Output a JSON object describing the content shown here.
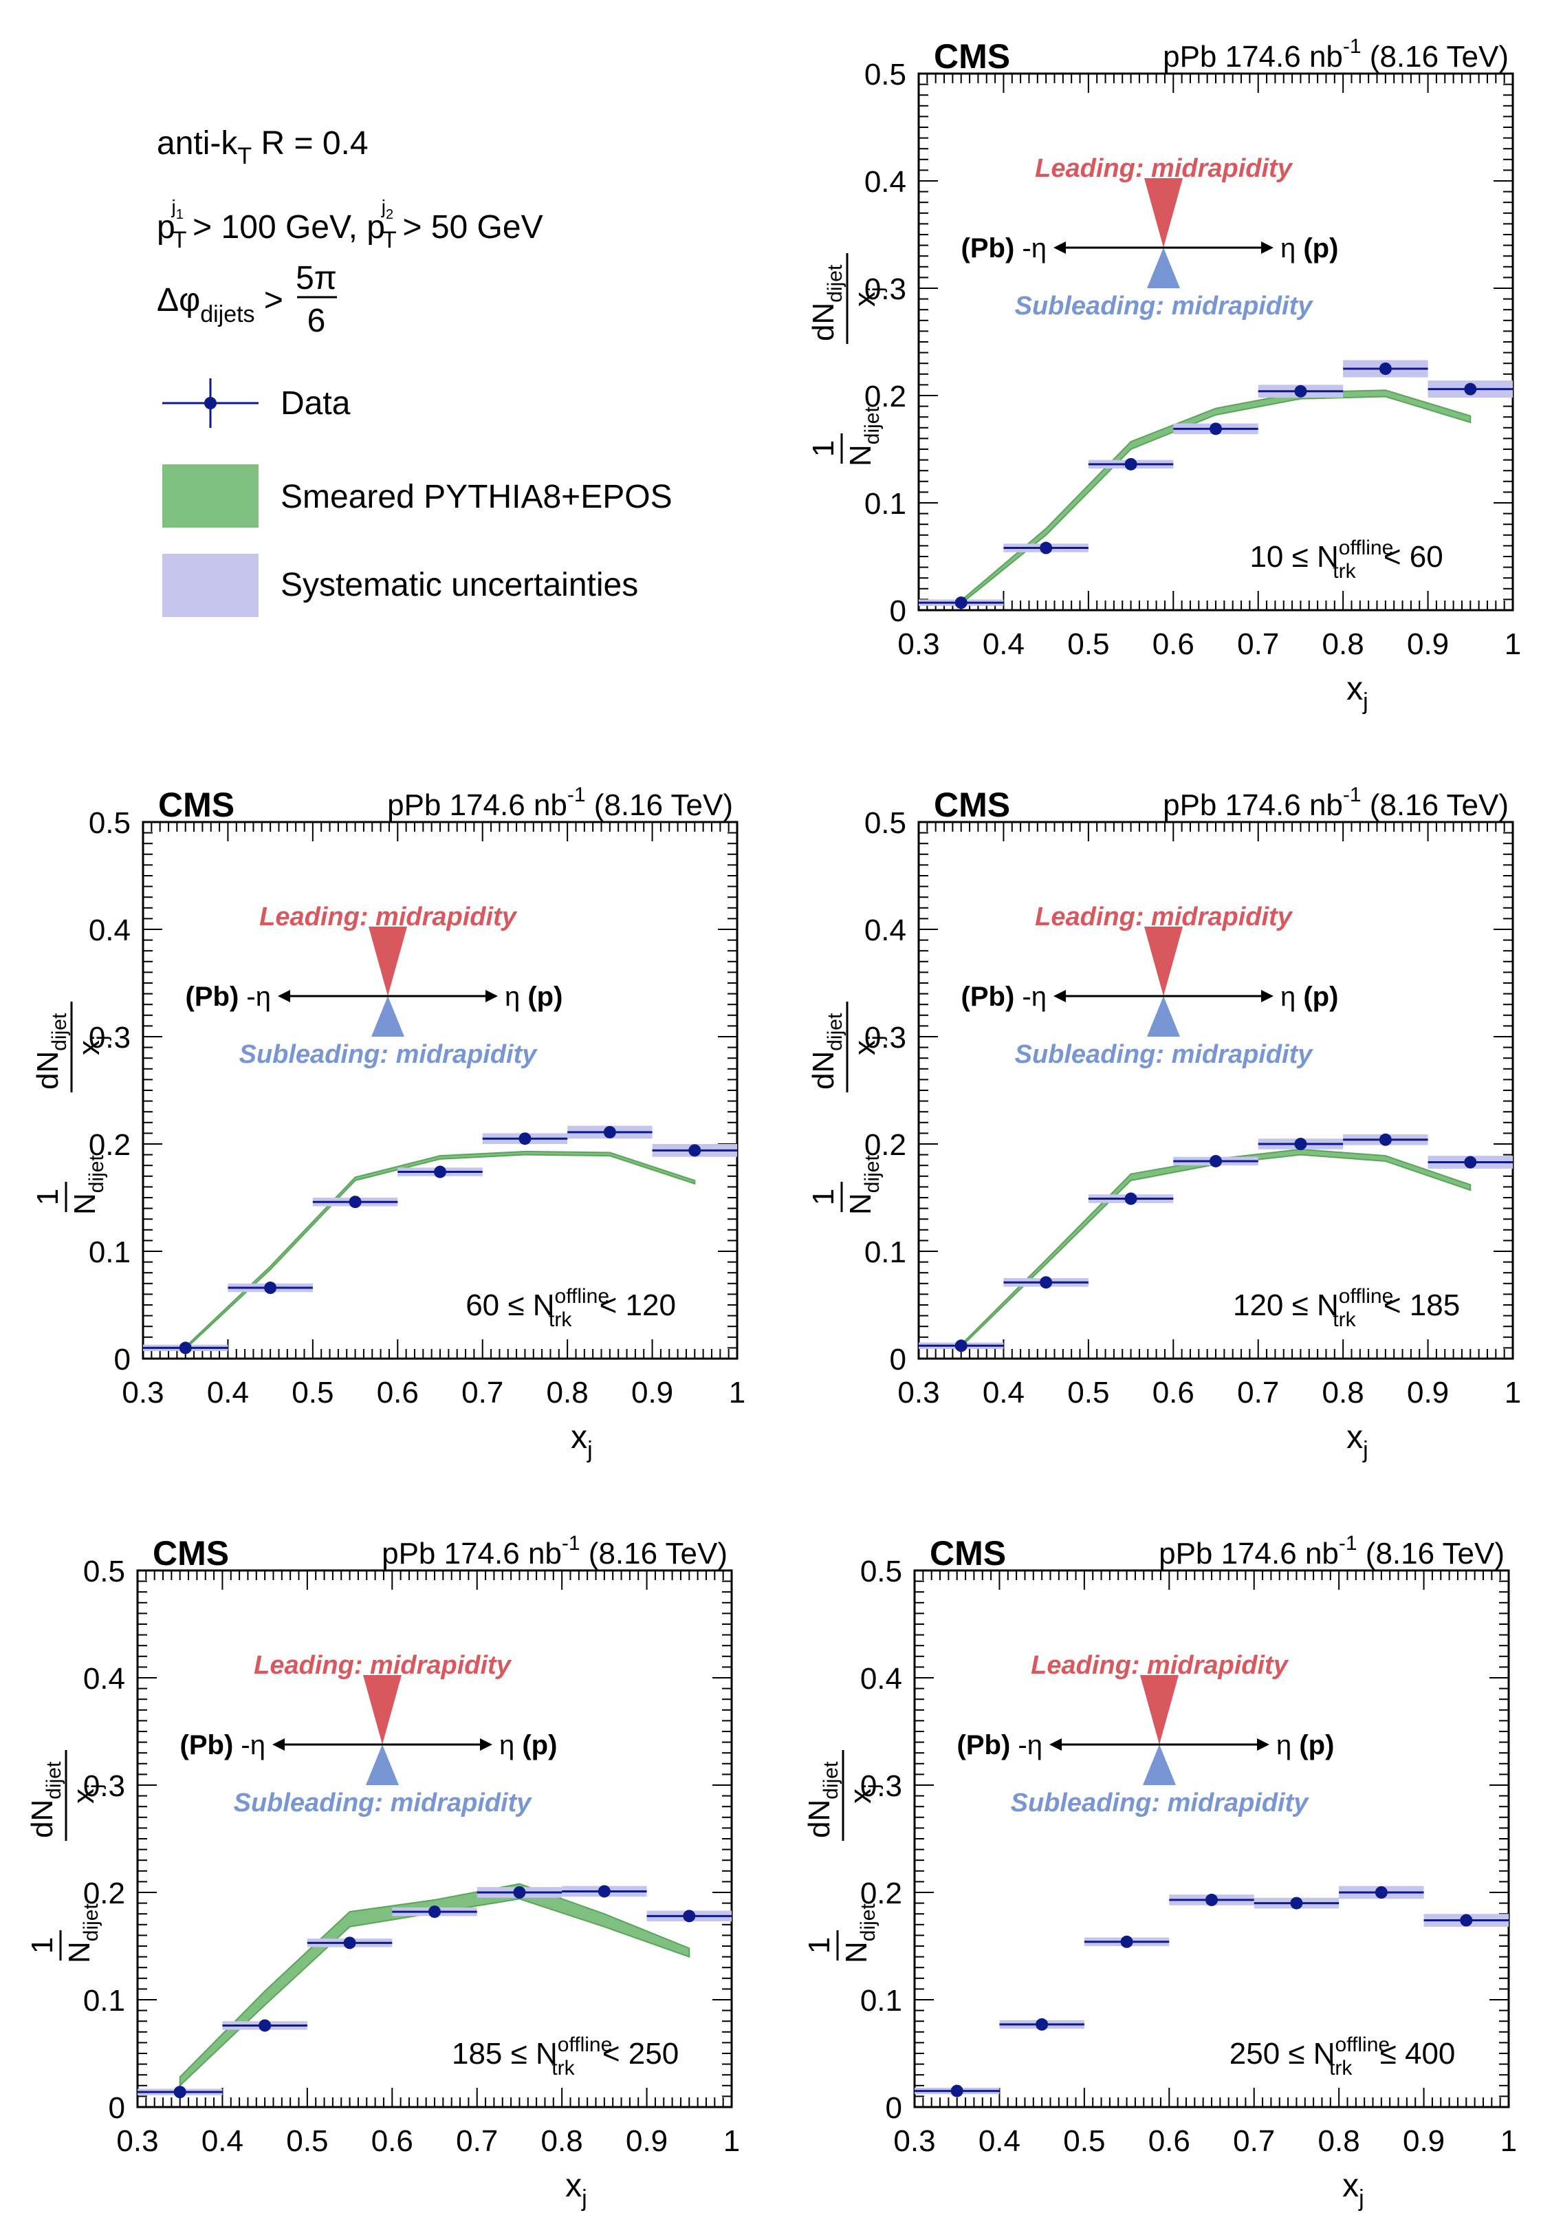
{
  "legend": {
    "algo_main": "anti-k",
    "algo_sub": "T",
    "algo_rest": " R = 0.4",
    "pt_p": "p",
    "pt_t": "T",
    "pt_j1": "j",
    "pt_j1sub": "1",
    "pt_gt1": " > 100 GeV, ",
    "pt_p2": "p",
    "pt_t2": "T",
    "pt_j2": "j",
    "pt_j2sub": "2",
    "pt_gt2": " > 50 GeV",
    "dphi_main": "Δφ",
    "dphi_sub": "dijets",
    "dphi_gt": " >",
    "frac_num": "5π",
    "frac_den": "6",
    "entry_data": "Data",
    "entry_model": "Smeared PYTHIA8+EPOS",
    "entry_syst": "Systematic uncertainties"
  },
  "labels": {
    "cms": "CMS",
    "lumi_main": "pPb 174.6 nb",
    "lumi_sup": "-1",
    "lumi_energy": " (8.16 TeV)",
    "leading": "Leading: midrapidity",
    "subleading": "Subleading: midrapidity",
    "pb": "(Pb)",
    "minus_eta": " -η",
    "eta": "η",
    "p": " (p)",
    "xlabel_main": "x",
    "xlabel_sub": "j",
    "ylabel_one": "1",
    "ylabel_den": "N",
    "ylabel_den_sub": "dijet",
    "ylabel_num": "dN",
    "ylabel_num_sub": "dijet",
    "ylabel_xj": "x",
    "ylabel_xj_sub": "j",
    "ntrk_N": "N",
    "ntrk_sup": "offline",
    "ntrk_sub": "trk"
  },
  "colors": {
    "data": "#0d1a8a",
    "model_fill": "#7fbf7f",
    "model_line": "#5aa55a",
    "syst": "#c4c4ec",
    "leading": "#d9585e",
    "subleading": "#7895d4"
  },
  "chart_data": [
    {
      "type": "scatter",
      "panel": "top-right",
      "xlim": [
        0.3,
        1.0
      ],
      "ylim": [
        0,
        0.5
      ],
      "ticks_x": [
        "0.3",
        "0.4",
        "0.5",
        "0.6",
        "0.7",
        "0.8",
        "0.9",
        "1"
      ],
      "ticks_y": [
        "0",
        "0.1",
        "0.2",
        "0.3",
        "0.4",
        "0.5"
      ],
      "ntrk_lo": "10 ≤ ",
      "ntrk_hi": " < 60",
      "x": [
        0.35,
        0.45,
        0.55,
        0.65,
        0.75,
        0.85,
        0.95
      ],
      "xerr": 0.05,
      "data": [
        0.007,
        0.058,
        0.136,
        0.169,
        0.204,
        0.225,
        0.206
      ],
      "syst": [
        0.003,
        0.004,
        0.004,
        0.005,
        0.006,
        0.008,
        0.008
      ],
      "model_x": [
        0.35,
        0.45,
        0.55,
        0.65,
        0.75,
        0.85,
        0.95
      ],
      "model_lo": [
        0.006,
        0.07,
        0.15,
        0.182,
        0.197,
        0.199,
        0.175
      ],
      "model_hi": [
        0.009,
        0.076,
        0.157,
        0.188,
        0.203,
        0.205,
        0.181
      ]
    },
    {
      "type": "scatter",
      "panel": "middle-left",
      "xlim": [
        0.3,
        1.0
      ],
      "ylim": [
        0,
        0.5
      ],
      "ticks_x": [
        "0.3",
        "0.4",
        "0.5",
        "0.6",
        "0.7",
        "0.8",
        "0.9",
        "1"
      ],
      "ticks_y": [
        "0",
        "0.1",
        "0.2",
        "0.3",
        "0.4",
        "0.5"
      ],
      "ntrk_lo": "60 ≤ ",
      "ntrk_hi": " < 120",
      "x": [
        0.35,
        0.45,
        0.55,
        0.65,
        0.75,
        0.85,
        0.95
      ],
      "xerr": 0.05,
      "data": [
        0.01,
        0.066,
        0.146,
        0.174,
        0.205,
        0.211,
        0.194
      ],
      "syst": [
        0.003,
        0.004,
        0.004,
        0.004,
        0.005,
        0.006,
        0.006
      ],
      "model_x": [
        0.35,
        0.45,
        0.55,
        0.65,
        0.75,
        0.85,
        0.95
      ],
      "model_lo": [
        0.009,
        0.083,
        0.166,
        0.186,
        0.19,
        0.189,
        0.163
      ],
      "model_hi": [
        0.011,
        0.086,
        0.169,
        0.189,
        0.193,
        0.192,
        0.166
      ]
    },
    {
      "type": "scatter",
      "panel": "middle-right",
      "xlim": [
        0.3,
        1.0
      ],
      "ylim": [
        0,
        0.5
      ],
      "ticks_x": [
        "0.3",
        "0.4",
        "0.5",
        "0.6",
        "0.7",
        "0.8",
        "0.9",
        "1"
      ],
      "ticks_y": [
        "0",
        "0.1",
        "0.2",
        "0.3",
        "0.4",
        "0.5"
      ],
      "ntrk_lo": "120 ≤ ",
      "ntrk_hi": " < 185",
      "x": [
        0.35,
        0.45,
        0.55,
        0.65,
        0.75,
        0.85,
        0.95
      ],
      "xerr": 0.05,
      "data": [
        0.012,
        0.071,
        0.149,
        0.184,
        0.2,
        0.204,
        0.183
      ],
      "syst": [
        0.003,
        0.004,
        0.004,
        0.004,
        0.005,
        0.005,
        0.006
      ],
      "model_x": [
        0.35,
        0.45,
        0.55,
        0.65,
        0.75,
        0.85,
        0.95
      ],
      "model_lo": [
        0.011,
        0.088,
        0.166,
        0.181,
        0.19,
        0.184,
        0.157
      ],
      "model_hi": [
        0.013,
        0.092,
        0.172,
        0.186,
        0.195,
        0.189,
        0.162
      ]
    },
    {
      "type": "scatter",
      "panel": "bottom-left",
      "xlim": [
        0.3,
        1.0
      ],
      "ylim": [
        0,
        0.5
      ],
      "ticks_x": [
        "0.3",
        "0.4",
        "0.5",
        "0.6",
        "0.7",
        "0.8",
        "0.9",
        "1"
      ],
      "ticks_y": [
        "0",
        "0.1",
        "0.2",
        "0.3",
        "0.4",
        "0.5"
      ],
      "ntrk_lo": "185 ≤ ",
      "ntrk_hi": " < 250",
      "x": [
        0.35,
        0.45,
        0.55,
        0.65,
        0.75,
        0.85,
        0.95
      ],
      "xerr": 0.05,
      "data": [
        0.014,
        0.076,
        0.153,
        0.182,
        0.2,
        0.201,
        0.178
      ],
      "syst": [
        0.003,
        0.004,
        0.004,
        0.004,
        0.005,
        0.005,
        0.005
      ],
      "model_x": [
        0.35,
        0.45,
        0.55,
        0.65,
        0.75,
        0.85,
        0.95
      ],
      "model_lo": [
        0.02,
        0.095,
        0.168,
        0.181,
        0.194,
        0.168,
        0.14
      ],
      "model_hi": [
        0.028,
        0.108,
        0.182,
        0.193,
        0.208,
        0.18,
        0.148
      ]
    },
    {
      "type": "scatter",
      "panel": "bottom-right",
      "xlim": [
        0.3,
        1.0
      ],
      "ylim": [
        0,
        0.5
      ],
      "ticks_x": [
        "0.3",
        "0.4",
        "0.5",
        "0.6",
        "0.7",
        "0.8",
        "0.9",
        "1"
      ],
      "ticks_y": [
        "0",
        "0.1",
        "0.2",
        "0.3",
        "0.4",
        "0.5"
      ],
      "ntrk_lo": "250 ≤ ",
      "ntrk_hi": " ≤ 400",
      "x": [
        0.35,
        0.45,
        0.55,
        0.65,
        0.75,
        0.85,
        0.95
      ],
      "xerr": 0.05,
      "data": [
        0.015,
        0.077,
        0.154,
        0.193,
        0.19,
        0.2,
        0.174
      ],
      "syst": [
        0.003,
        0.004,
        0.004,
        0.005,
        0.005,
        0.006,
        0.006
      ],
      "model_x": [],
      "model_lo": [],
      "model_hi": []
    }
  ]
}
